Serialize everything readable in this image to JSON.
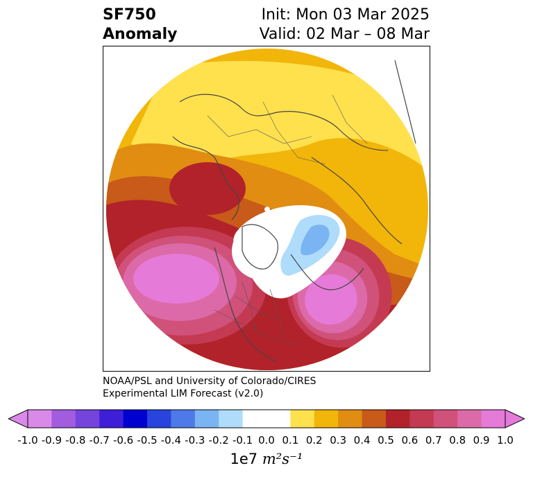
{
  "title": {
    "variable": "SF750",
    "subtitle": "Anomaly",
    "init": "Init: Mon 03 Mar 2025",
    "valid": "Valid: 02 Mar – 08 Mar"
  },
  "credit": {
    "line1": "NOAA/PSL and University of Colorado/CIRES",
    "line2": "Experimental LIM Forecast (v2.0)"
  },
  "colorbar": {
    "units_label": "1e7",
    "units_expr": "m²s⁻¹",
    "ticks": [
      "-1.0",
      "-0.9",
      "-0.8",
      "-0.7",
      "-0.6",
      "-0.5",
      "-0.4",
      "-0.3",
      "-0.2",
      "-0.1",
      "0.0",
      "0.1",
      "0.2",
      "0.3",
      "0.4",
      "0.5",
      "0.6",
      "0.7",
      "0.8",
      "0.9",
      "1.0"
    ],
    "colors": [
      "#d98ae8",
      "#a35ce0",
      "#7544dc",
      "#3e1fd7",
      "#0000d0",
      "#2944dc",
      "#4e79e8",
      "#7ab4f2",
      "#aedcfa",
      "#ffffff",
      "#ffffff",
      "#ffe14e",
      "#f2b50a",
      "#e08d12",
      "#c85a1a",
      "#b2222a",
      "#c43a52",
      "#d0517a",
      "#dc6aa8",
      "#e57ad8"
    ]
  },
  "map_legend": {
    "projection": "north-polar-stereographic",
    "features": [
      "coastlines-icon",
      "country-borders-icon",
      "state-borders-icon"
    ]
  }
}
